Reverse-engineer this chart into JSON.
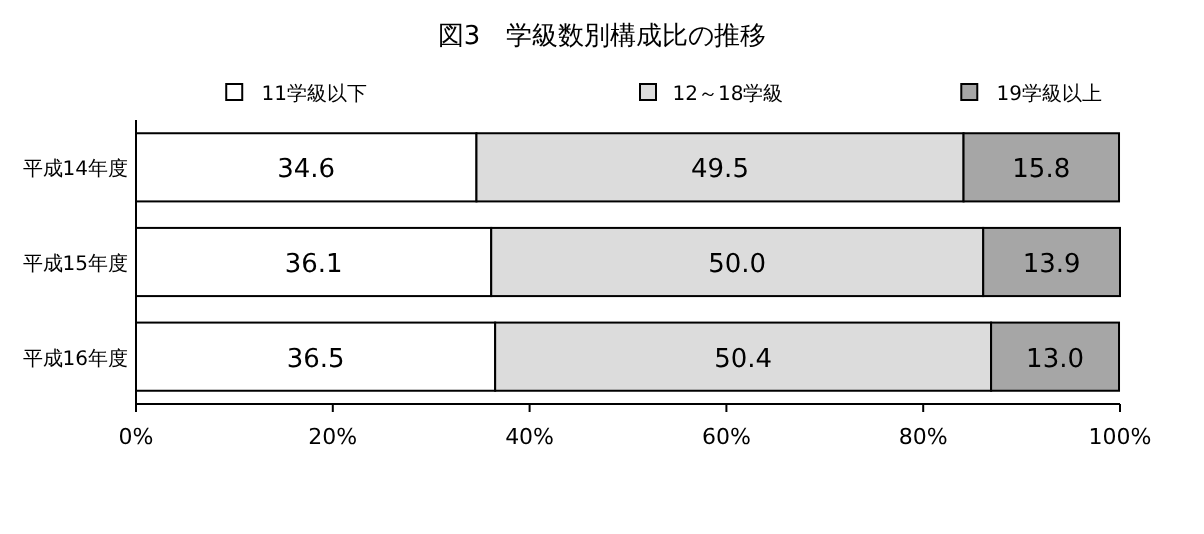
{
  "chart_data": {
    "type": "bar",
    "orientation": "horizontal",
    "stacked": true,
    "title": "図3　学級数別構成比の推移",
    "categories": [
      "平成14年度",
      "平成15年度",
      "平成16年度"
    ],
    "series": [
      {
        "name": "11学級以下",
        "color": "#ffffff",
        "values": [
          34.6,
          36.1,
          36.5
        ],
        "value_labels": [
          "34.6",
          "36.1",
          "36.5"
        ]
      },
      {
        "name": "12～18学級",
        "color": "#dcdcdc",
        "values": [
          49.5,
          50.0,
          50.4
        ],
        "value_labels": [
          "49.5",
          "50.0",
          "50.4"
        ]
      },
      {
        "name": "19学級以上",
        "color": "#a6a6a6",
        "values": [
          15.8,
          13.9,
          13.0
        ],
        "value_labels": [
          "15.8",
          "13.9",
          "13.0"
        ]
      }
    ],
    "xlim": [
      0,
      100
    ],
    "xticks": [
      {
        "value": 0,
        "label": "0%"
      },
      {
        "value": 20,
        "label": "20%"
      },
      {
        "value": 40,
        "label": "40%"
      },
      {
        "value": 60,
        "label": "60%"
      },
      {
        "value": 80,
        "label": "80%"
      },
      {
        "value": 100,
        "label": "100%"
      }
    ],
    "legend": "top",
    "grid": false
  }
}
